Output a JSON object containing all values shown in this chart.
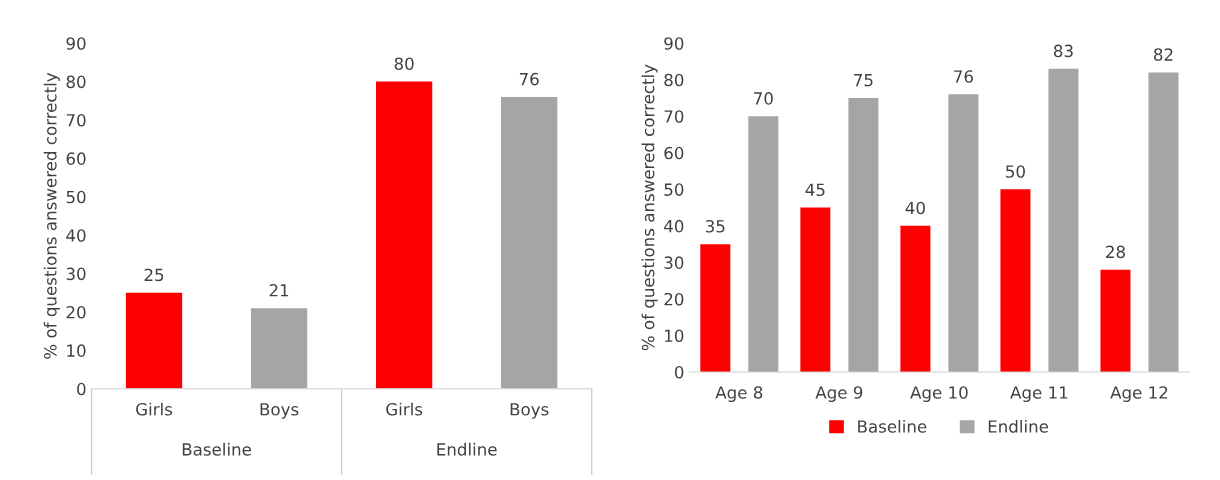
{
  "chart_data": [
    {
      "type": "bar",
      "categories": [
        "Girls",
        "Boys",
        "Girls",
        "Boys"
      ],
      "values": [
        25,
        21,
        80,
        76
      ],
      "colors": [
        "#ff0000",
        "#a5a5a5",
        "#ff0000",
        "#a5a5a5"
      ],
      "ylabel": "% of questions answered correctly",
      "ylim": [
        0,
        90
      ],
      "yticks": [
        0,
        10,
        20,
        30,
        40,
        50,
        60,
        70,
        80,
        90
      ],
      "data_labels": true,
      "grid": false,
      "legend": false,
      "annotations": [
        "Baseline",
        "Endline"
      ]
    },
    {
      "type": "bar",
      "categories": [
        "Age 8",
        "Age 9",
        "Age 10",
        "Age 11",
        "Age 12"
      ],
      "ylabel": "% of questions answered correctly",
      "ylim": [
        0,
        90
      ],
      "yticks": [
        0,
        10,
        20,
        30,
        40,
        50,
        60,
        70,
        80,
        90
      ],
      "data_labels": true,
      "grid": false,
      "legend": "bottom",
      "series": [
        {
          "name": "Baseline",
          "color": "#ff0000",
          "values": [
            35,
            45,
            40,
            50,
            28
          ]
        },
        {
          "name": "Endline",
          "color": "#a5a5a5",
          "values": [
            70,
            75,
            76,
            83,
            82
          ]
        }
      ]
    }
  ]
}
